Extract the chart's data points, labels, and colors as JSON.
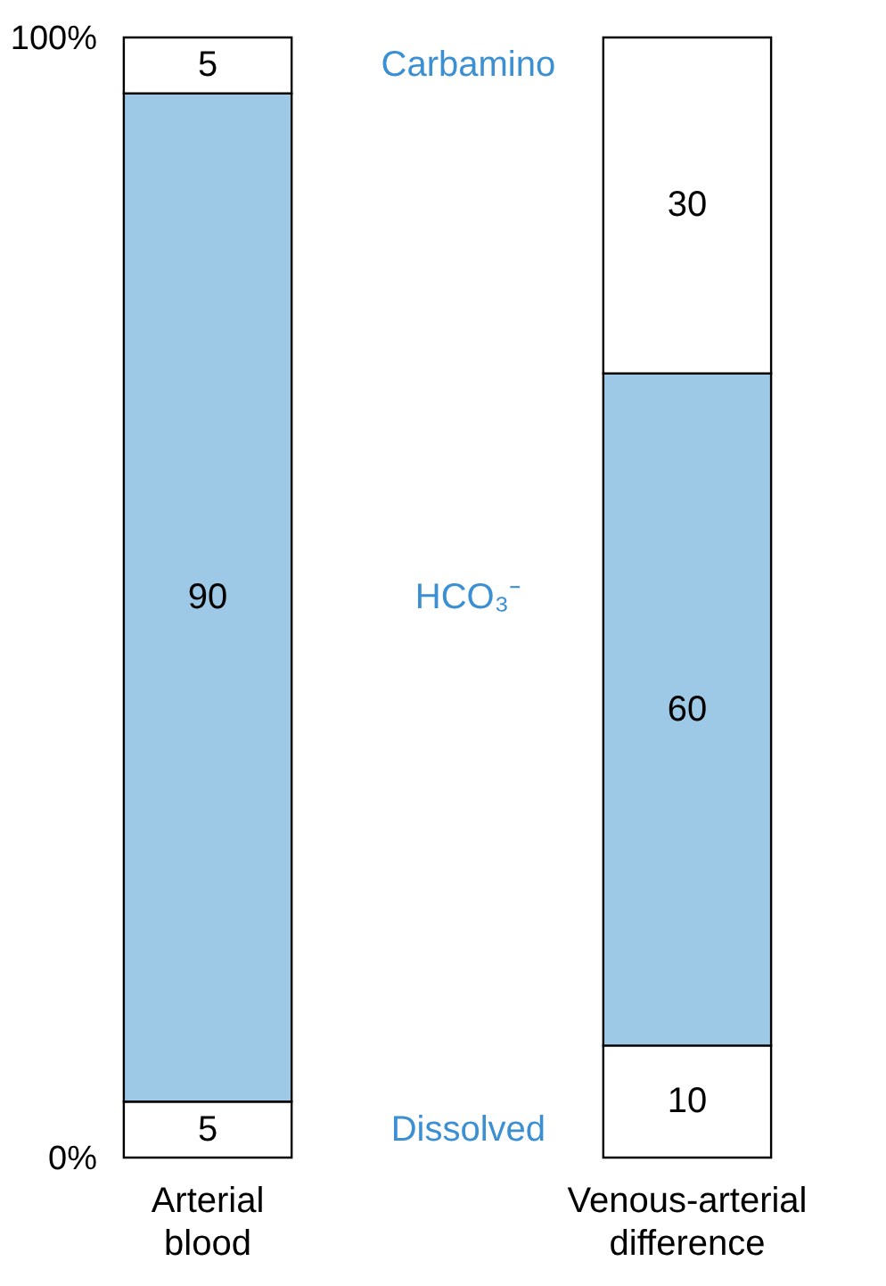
{
  "chart_data": {
    "type": "bar",
    "stacked": true,
    "categories": [
      "Arterial blood",
      "Venous-arterial difference"
    ],
    "series": [
      {
        "name": "Dissolved",
        "color": "#ffffff",
        "values": [
          5,
          10
        ]
      },
      {
        "name": "HCO₃⁻",
        "color": "#9dc8e6",
        "values": [
          90,
          60
        ]
      },
      {
        "name": "Carbamino",
        "color": "#ffffff",
        "values": [
          5,
          30
        ]
      }
    ],
    "ylim": [
      0,
      100
    ],
    "yticks": [
      {
        "value": 0,
        "label": "0%"
      },
      {
        "value": 100,
        "label": "100%"
      }
    ],
    "data_labels": true,
    "legend": false
  }
}
